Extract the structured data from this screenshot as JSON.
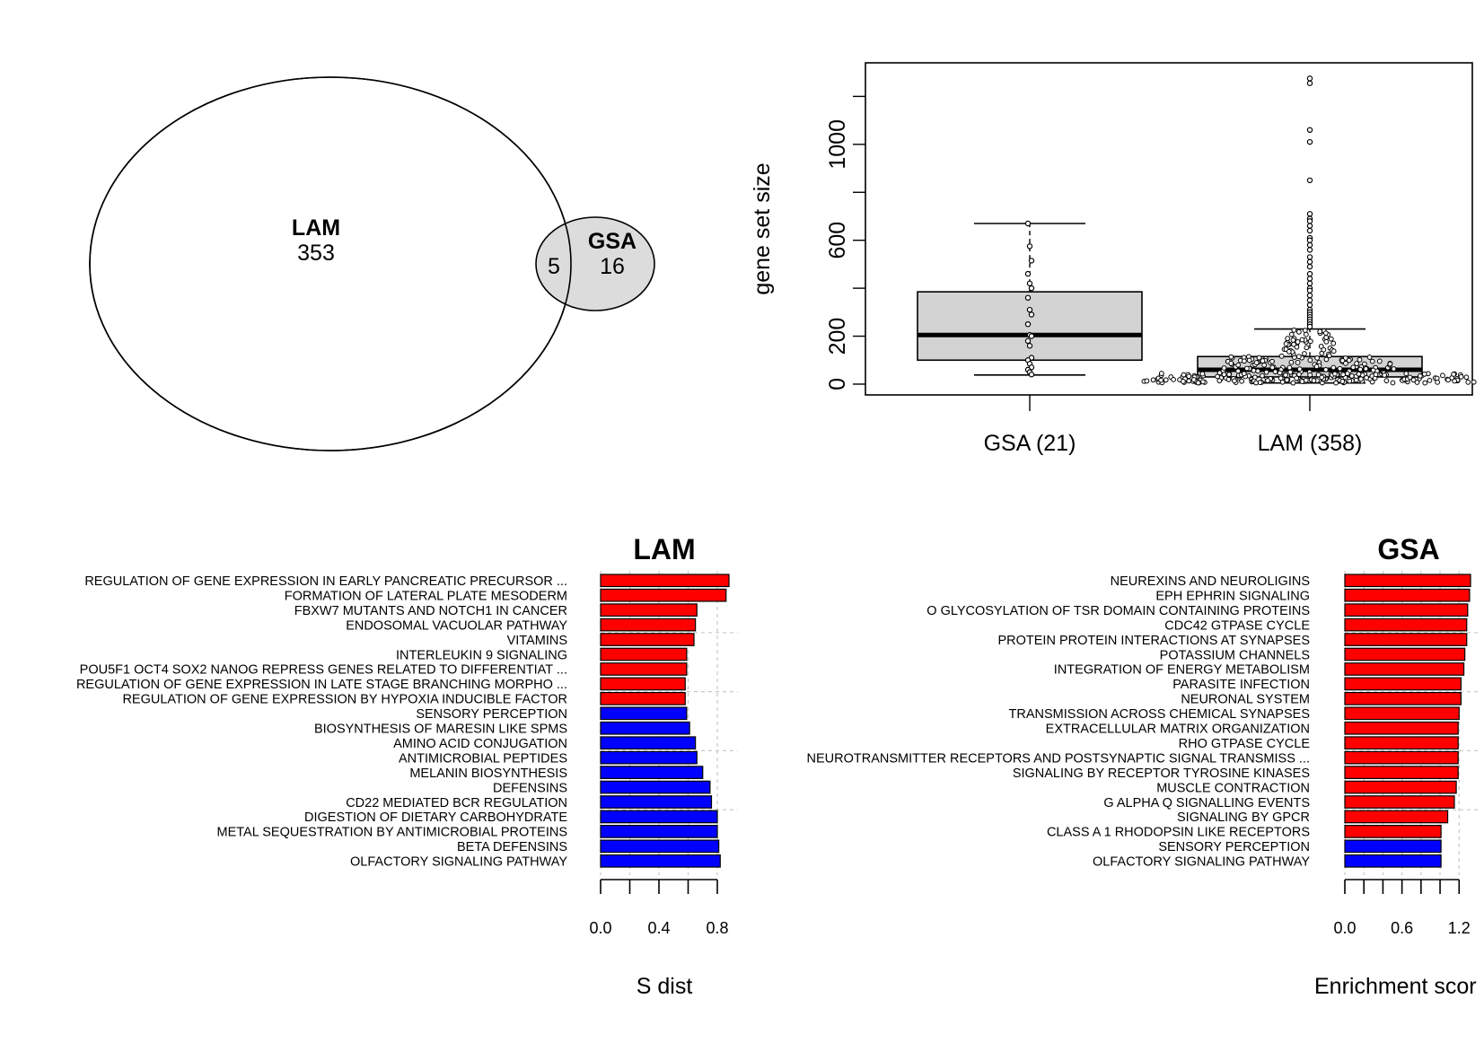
{
  "chart_data": [
    {
      "type": "venn",
      "sets": [
        {
          "name": "LAM",
          "only_count": "353",
          "fill": "#ffffff"
        },
        {
          "name": "GSA",
          "only_count": "16",
          "fill": "#dcdcdc"
        }
      ],
      "intersection_count": "5"
    },
    {
      "type": "boxplot",
      "ylabel": "gene set size",
      "yticks": [
        0,
        200,
        600,
        1000
      ],
      "yticks_unlabeled": [
        400,
        800,
        1200
      ],
      "ylim": [
        -45,
        1340
      ],
      "groups": [
        {
          "label": "GSA (21)",
          "q1": 100,
          "median": 205,
          "q3": 385,
          "whisker_low": 38,
          "whisker_high": 670,
          "points": [
            670,
            575,
            515,
            460,
            420,
            400,
            360,
            310,
            290,
            250,
            205,
            200,
            180,
            160,
            110,
            100,
            85,
            70,
            60,
            50,
            40
          ]
        },
        {
          "label": "LAM (358)",
          "q1": 30,
          "median": 60,
          "q3": 115,
          "whisker_low": 5,
          "whisker_high": 230,
          "outliers": [
            1275,
            1255,
            1060,
            1010,
            850,
            710,
            690,
            680,
            660,
            640,
            610,
            600,
            580,
            560,
            530,
            510,
            490,
            460,
            440,
            420,
            400,
            390,
            370,
            350,
            330,
            310,
            300,
            290,
            280,
            270,
            260,
            250,
            240
          ]
        }
      ],
      "box_fill": "#d3d3d3"
    },
    {
      "type": "bar",
      "orientation": "horizontal",
      "title": "LAM",
      "xlabel": "S dist",
      "xticks": [
        0.0,
        0.4,
        0.8
      ],
      "xtick_labels": [
        "0.0",
        "0.4",
        "0.8"
      ],
      "xtick_marks": [
        0.0,
        0.2,
        0.4,
        0.6,
        0.8
      ],
      "xlim": [
        0,
        0.88
      ],
      "bars": [
        {
          "label": "REGULATION OF GENE EXPRESSION IN EARLY PANCREATIC PRECURSOR  ...",
          "value": 0.88,
          "direction": "up"
        },
        {
          "label": "FORMATION OF LATERAL PLATE MESODERM",
          "value": 0.86,
          "direction": "up"
        },
        {
          "label": "FBXW7 MUTANTS AND NOTCH1 IN CANCER",
          "value": 0.66,
          "direction": "up"
        },
        {
          "label": "ENDOSOMAL VACUOLAR PATHWAY",
          "value": 0.65,
          "direction": "up"
        },
        {
          "label": "VITAMINS",
          "value": 0.64,
          "direction": "up"
        },
        {
          "label": "INTERLEUKIN 9 SIGNALING",
          "value": 0.59,
          "direction": "up"
        },
        {
          "label": "POU5F1 OCT4 SOX2 NANOG REPRESS GENES RELATED TO DIFFERENTIAT ...",
          "value": 0.59,
          "direction": "up"
        },
        {
          "label": "REGULATION OF GENE EXPRESSION IN LATE STAGE BRANCHING MORPHO ...",
          "value": 0.58,
          "direction": "up"
        },
        {
          "label": "REGULATION OF GENE EXPRESSION BY HYPOXIA INDUCIBLE FACTOR",
          "value": 0.58,
          "direction": "up"
        },
        {
          "label": "SENSORY PERCEPTION",
          "value": 0.59,
          "direction": "down"
        },
        {
          "label": "BIOSYNTHESIS OF MARESIN LIKE SPMS",
          "value": 0.61,
          "direction": "down"
        },
        {
          "label": "AMINO ACID CONJUGATION",
          "value": 0.65,
          "direction": "down"
        },
        {
          "label": "ANTIMICROBIAL PEPTIDES",
          "value": 0.66,
          "direction": "down"
        },
        {
          "label": "MELANIN BIOSYNTHESIS",
          "value": 0.7,
          "direction": "down"
        },
        {
          "label": "DEFENSINS",
          "value": 0.75,
          "direction": "down"
        },
        {
          "label": "CD22 MEDIATED BCR REGULATION",
          "value": 0.76,
          "direction": "down"
        },
        {
          "label": "DIGESTION OF DIETARY CARBOHYDRATE",
          "value": 0.8,
          "direction": "down"
        },
        {
          "label": "METAL SEQUESTRATION BY ANTIMICROBIAL PROTEINS",
          "value": 0.8,
          "direction": "down"
        },
        {
          "label": "BETA DEFENSINS",
          "value": 0.81,
          "direction": "down"
        },
        {
          "label": "OLFACTORY SIGNALING PATHWAY",
          "value": 0.82,
          "direction": "down"
        }
      ],
      "colors": {
        "up": "#ff0000",
        "down": "#0000ff"
      }
    },
    {
      "type": "bar",
      "orientation": "horizontal",
      "title": "GSA",
      "xlabel": "Enrichment scor",
      "xticks": [
        0.0,
        0.6,
        1.2
      ],
      "xtick_labels": [
        "0.0",
        "0.6",
        "1.2"
      ],
      "xtick_marks": [
        0.0,
        0.2,
        0.4,
        0.6,
        0.8,
        1.0,
        1.2
      ],
      "xlim": [
        0,
        1.32
      ],
      "bars": [
        {
          "label": "NEUREXINS AND NEUROLIGINS",
          "value": 1.32,
          "direction": "up"
        },
        {
          "label": "EPH EPHRIN SIGNALING",
          "value": 1.31,
          "direction": "up"
        },
        {
          "label": "O GLYCOSYLATION OF TSR DOMAIN CONTAINING PROTEINS",
          "value": 1.29,
          "direction": "up"
        },
        {
          "label": "CDC42 GTPASE CYCLE",
          "value": 1.28,
          "direction": "up"
        },
        {
          "label": "PROTEIN PROTEIN INTERACTIONS AT SYNAPSES",
          "value": 1.28,
          "direction": "up"
        },
        {
          "label": "POTASSIUM CHANNELS",
          "value": 1.26,
          "direction": "up"
        },
        {
          "label": "INTEGRATION OF ENERGY METABOLISM",
          "value": 1.25,
          "direction": "up"
        },
        {
          "label": "PARASITE INFECTION",
          "value": 1.22,
          "direction": "up"
        },
        {
          "label": "NEURONAL SYSTEM",
          "value": 1.22,
          "direction": "up"
        },
        {
          "label": "TRANSMISSION ACROSS CHEMICAL SYNAPSES",
          "value": 1.2,
          "direction": "up"
        },
        {
          "label": "EXTRACELLULAR MATRIX ORGANIZATION",
          "value": 1.19,
          "direction": "up"
        },
        {
          "label": "RHO GTPASE CYCLE",
          "value": 1.19,
          "direction": "up"
        },
        {
          "label": "NEUROTRANSMITTER RECEPTORS AND POSTSYNAPTIC SIGNAL TRANSMISS ...",
          "value": 1.19,
          "direction": "up"
        },
        {
          "label": "SIGNALING BY RECEPTOR TYROSINE KINASES",
          "value": 1.19,
          "direction": "up"
        },
        {
          "label": "MUSCLE CONTRACTION",
          "value": 1.17,
          "direction": "up"
        },
        {
          "label": "G ALPHA Q SIGNALLING EVENTS",
          "value": 1.15,
          "direction": "up"
        },
        {
          "label": "SIGNALING BY GPCR",
          "value": 1.08,
          "direction": "up"
        },
        {
          "label": "CLASS A 1 RHODOPSIN LIKE RECEPTORS",
          "value": 1.01,
          "direction": "up"
        },
        {
          "label": "SENSORY PERCEPTION",
          "value": 1.01,
          "direction": "down"
        },
        {
          "label": "OLFACTORY SIGNALING PATHWAY",
          "value": 1.01,
          "direction": "down"
        }
      ],
      "colors": {
        "up": "#ff0000",
        "down": "#0000ff"
      }
    }
  ]
}
